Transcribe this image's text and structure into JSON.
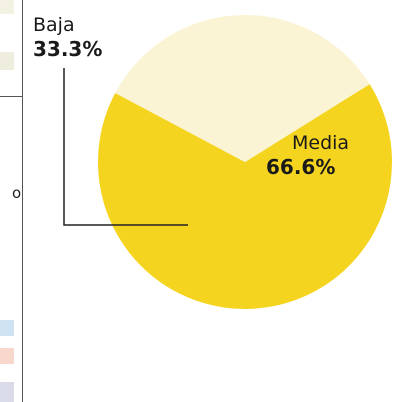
{
  "chart_data": {
    "type": "pie",
    "slices": [
      {
        "label": "Baja",
        "value_text": "33.3%",
        "value": 33.3,
        "color": "#FBF4D4"
      },
      {
        "label": "Media",
        "value_text": "66.6%",
        "value": 66.6,
        "color": "#F5D41F"
      }
    ]
  },
  "left_strip": {
    "glyph": "o",
    "swatch_colors": [
      "#F3F1E2",
      "#EFEEDE",
      "#CFE3F2",
      "#F8D8CC",
      "#D9DCE8"
    ]
  }
}
